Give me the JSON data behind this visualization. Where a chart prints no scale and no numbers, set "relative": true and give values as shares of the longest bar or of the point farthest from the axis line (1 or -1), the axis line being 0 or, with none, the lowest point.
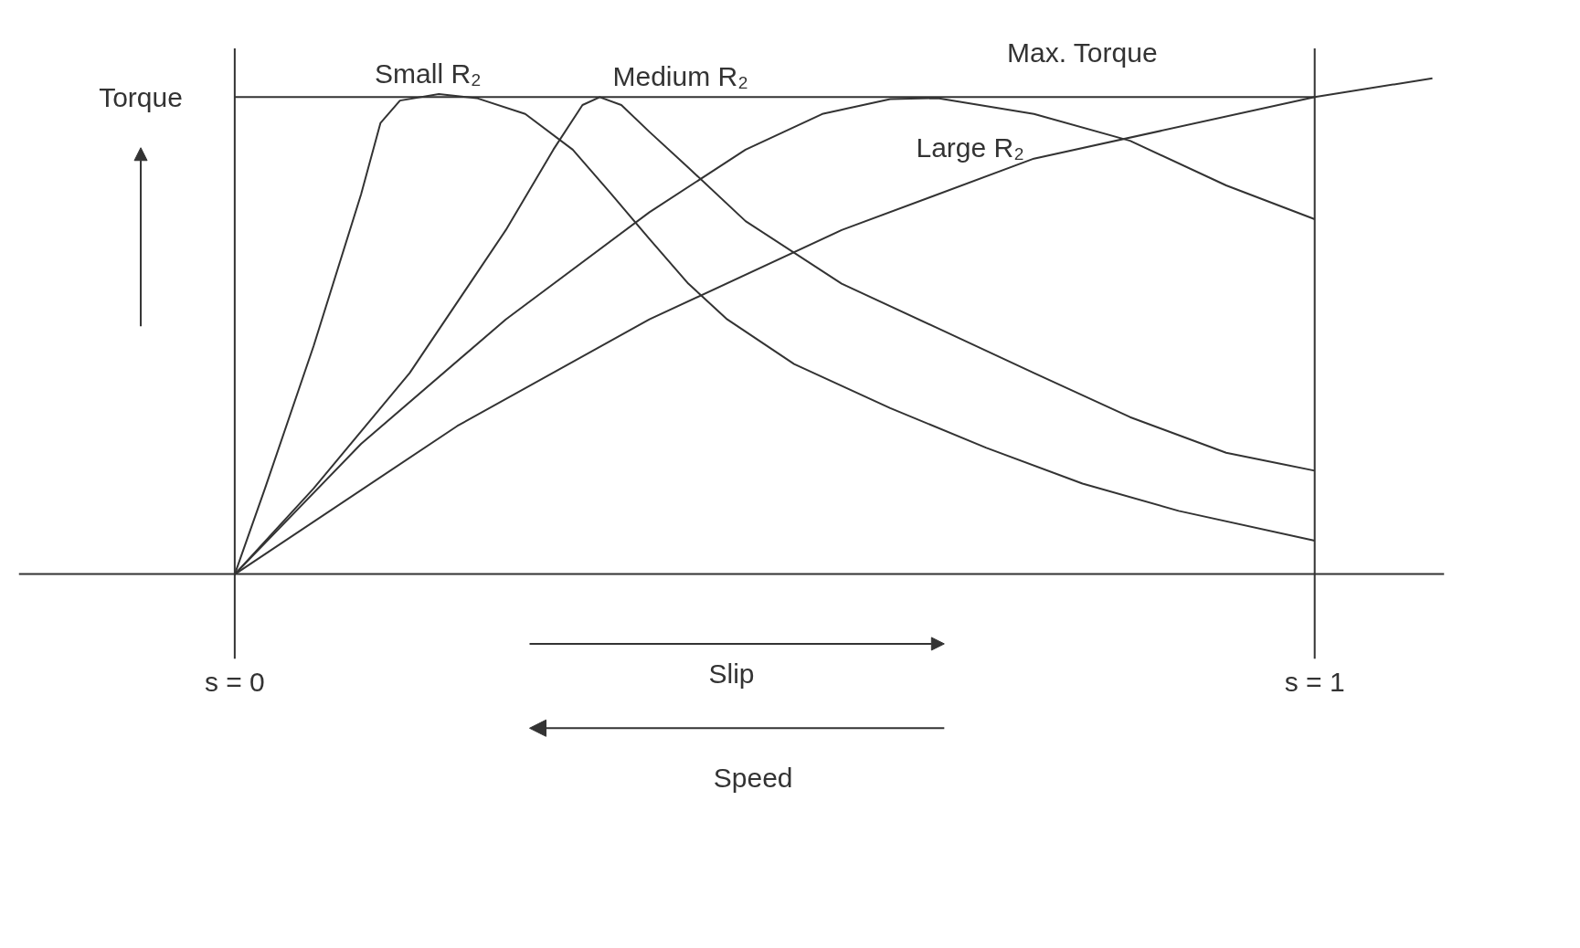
{
  "chart_data": {
    "type": "line",
    "relative": true,
    "ylabel": "Torque",
    "xlabel": "Slip",
    "annotations": [
      "Speed"
    ],
    "xlim": [
      -0.2,
      1.12
    ],
    "xticks": [
      {
        "value": 0,
        "label": "s = 0"
      },
      {
        "value": 1,
        "label": "s = 1"
      }
    ],
    "grid": false,
    "marker": "none",
    "line_style": "solid",
    "ref_lines": [
      {
        "axis": "y",
        "value": 0.962,
        "label": "Max. Torque"
      },
      {
        "axis": "x",
        "value": 0,
        "label": null
      },
      {
        "axis": "x",
        "value": 1,
        "label": null
      }
    ],
    "series": [
      {
        "name": "Small R₂",
        "color": "#333333",
        "x": [
          0,
          0.028,
          0.073,
          0.117,
          0.135,
          0.153,
          0.189,
          0.224,
          0.269,
          0.313,
          0.349,
          0.384,
          0.42,
          0.456,
          0.518,
          0.607,
          0.696,
          0.785,
          0.874,
          1.0
        ],
        "values": [
          0,
          0.173,
          0.46,
          0.766,
          0.91,
          0.955,
          0.968,
          0.96,
          0.928,
          0.856,
          0.766,
          0.676,
          0.586,
          0.514,
          0.424,
          0.335,
          0.255,
          0.183,
          0.128,
          0.068
        ]
      },
      {
        "name": "Medium R₂",
        "color": "#333333",
        "x": [
          0,
          0.073,
          0.162,
          0.251,
          0.295,
          0.322,
          0.338,
          0.358,
          0.384,
          0.42,
          0.473,
          0.562,
          0.651,
          0.74,
          0.829,
          0.918,
          1.0
        ],
        "values": [
          0,
          0.173,
          0.406,
          0.694,
          0.856,
          0.946,
          0.962,
          0.946,
          0.892,
          0.82,
          0.712,
          0.586,
          0.496,
          0.406,
          0.317,
          0.245,
          0.209
        ]
      },
      {
        "name": "Large R₂",
        "color": "#333333",
        "x": [
          0,
          0.117,
          0.251,
          0.384,
          0.473,
          0.544,
          0.607,
          0.651,
          0.74,
          0.829,
          0.918,
          1.0
        ],
        "values": [
          0,
          0.263,
          0.514,
          0.73,
          0.856,
          0.928,
          0.958,
          0.96,
          0.928,
          0.874,
          0.784,
          0.716
        ]
      },
      {
        "color": "#333333",
        "x": [
          0,
          0.206,
          0.384,
          0.562,
          0.74,
          1.0,
          1.109
        ],
        "values": [
          0,
          0.299,
          0.514,
          0.694,
          0.838,
          0.962,
          1.0
        ]
      }
    ]
  }
}
